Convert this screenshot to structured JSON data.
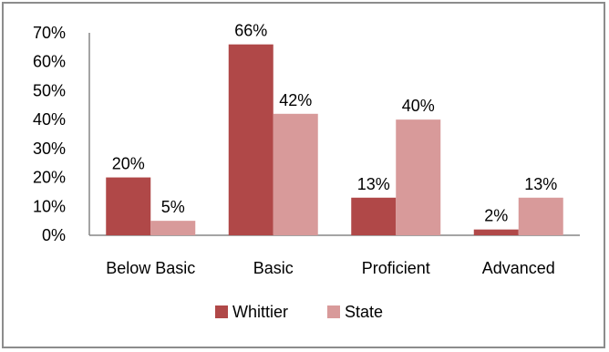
{
  "chart_data": {
    "type": "bar",
    "categories": [
      "Below Basic",
      "Basic",
      "Proficient",
      "Advanced"
    ],
    "series": [
      {
        "name": "Whittier",
        "values": [
          20,
          66,
          13,
          2
        ],
        "labels": [
          "20%",
          "66%",
          "13%",
          "2%"
        ],
        "color": "#b04848"
      },
      {
        "name": "State",
        "values": [
          5,
          42,
          40,
          13
        ],
        "labels": [
          "5%",
          "42%",
          "40%",
          "13%"
        ],
        "color": "#d89a9a"
      }
    ],
    "ylim": [
      0,
      70
    ],
    "yticks": [
      "0%",
      "10%",
      "20%",
      "30%",
      "40%",
      "50%",
      "60%",
      "70%"
    ],
    "legend_position": "bottom",
    "grid": false
  }
}
